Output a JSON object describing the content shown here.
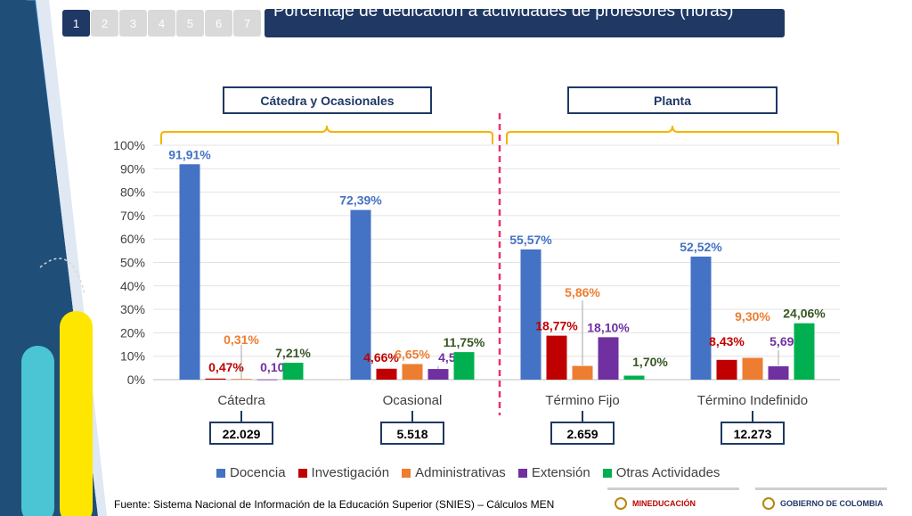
{
  "header": {
    "steps": [
      "1",
      "2",
      "3",
      "4",
      "5",
      "6",
      "7"
    ],
    "active_step": "1",
    "title": "Porcentaje de dedicación a actividades de profesores (horas)"
  },
  "groups": [
    {
      "label": "Cátedra y Ocasionales"
    },
    {
      "label": "Planta"
    }
  ],
  "chart_data": {
    "type": "bar",
    "categories": [
      "Cátedra",
      "Ocasional",
      "Término Fijo",
      "Término Indefinido"
    ],
    "category_totals": [
      "22.029",
      "5.518",
      "2.659",
      "12.273"
    ],
    "y_ticks": [
      "0%",
      "10%",
      "20%",
      "30%",
      "40%",
      "50%",
      "60%",
      "70%",
      "80%",
      "90%",
      "100%"
    ],
    "ylim": [
      0,
      100
    ],
    "grid": true,
    "legend_position": "bottom",
    "series": [
      {
        "name": "Docencia",
        "color": "#4472c4",
        "values": [
          91.91,
          72.39,
          55.57,
          52.52
        ],
        "labels": [
          "91,91%",
          "72,39%",
          "55,57%",
          "52,52%"
        ]
      },
      {
        "name": "Investigación",
        "color": "#c00000",
        "values": [
          0.47,
          4.66,
          18.77,
          8.43
        ],
        "labels": [
          "0,47%",
          "4,66%",
          "18,77%",
          "8,43%"
        ]
      },
      {
        "name": "Administrativas",
        "color": "#ed7d31",
        "values": [
          0.31,
          6.65,
          5.86,
          9.3
        ],
        "labels": [
          "0,31%",
          "6,65%",
          "5,86%",
          "9,30%"
        ]
      },
      {
        "name": "Extensión",
        "color": "#7030a0",
        "values": [
          0.1,
          4.54,
          18.1,
          5.69
        ],
        "labels": [
          "0,10%",
          "4,54%",
          "18,10%",
          "5,69%"
        ]
      },
      {
        "name": "Otras Actividades",
        "color": "#00b050",
        "label_color": "#375623",
        "values": [
          7.21,
          11.75,
          1.7,
          24.06
        ],
        "labels": [
          "7,21%",
          "11,75%",
          "1,70%",
          "24,06%"
        ]
      }
    ]
  },
  "footer": {
    "source": "Fuente: Sistema Nacional de Información de la Educación Superior (SNIES) – Cálculos MEN",
    "logo_left": "MINEDUCACIÓN",
    "logo_right": "GOBIERNO DE COLOMBIA"
  }
}
